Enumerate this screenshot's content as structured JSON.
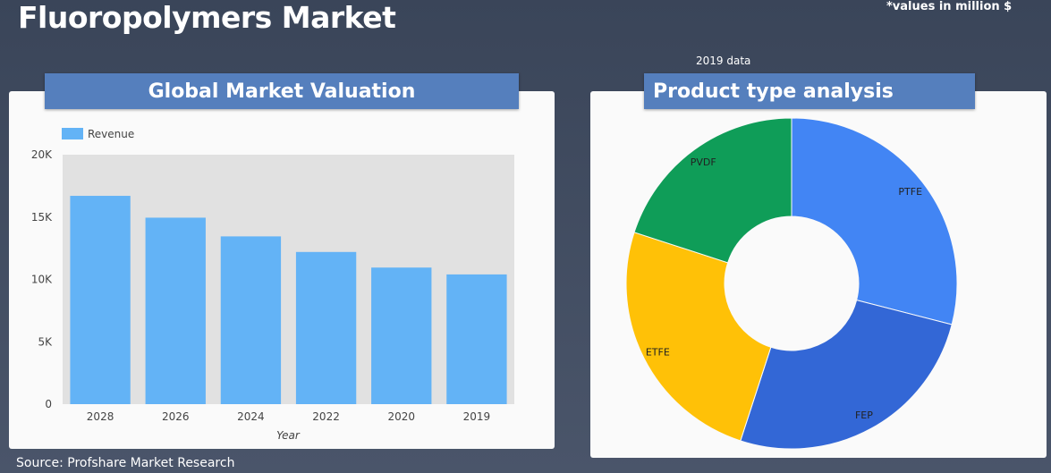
{
  "header": {
    "title": "Fluoropolymers Market",
    "values_note": "*values in million $",
    "data_year": "2019 data"
  },
  "colors": {
    "background": "#3d4760",
    "card": "#fafafa",
    "header_bar": "#557fbd",
    "bar": "#63b3f6",
    "plot_bg": "#e1e1e1"
  },
  "footer": {
    "source": "Source: Profshare Market Research"
  },
  "chart_data": [
    {
      "type": "bar",
      "title": "Global Market Valuation",
      "categories": [
        "2028",
        "2026",
        "2024",
        "2022",
        "2020",
        "2019"
      ],
      "series": [
        {
          "name": "Revenue",
          "values": [
            16700,
            14950,
            13450,
            12200,
            10950,
            10400
          ],
          "color": "#63b3f6"
        }
      ],
      "xlabel": "Year",
      "ylabel": "",
      "ylim": [
        0,
        20000
      ],
      "yticks": [
        0,
        5000,
        10000,
        15000,
        20000
      ],
      "ytick_labels": [
        "0",
        "5K",
        "10K",
        "15K",
        "20K"
      ],
      "legend": "top-left",
      "grid": false
    },
    {
      "type": "pie",
      "title": "Product type analysis",
      "donut": true,
      "slices": [
        {
          "label": "PTFE",
          "value": 29,
          "color": "#4285f4"
        },
        {
          "label": "FEP",
          "value": 26,
          "color": "#3367d6"
        },
        {
          "label": "ETFE",
          "value": 25,
          "color": "#ffc107"
        },
        {
          "label": "PVDF",
          "value": 20,
          "color": "#0f9d58"
        }
      ],
      "legend": "none"
    }
  ]
}
